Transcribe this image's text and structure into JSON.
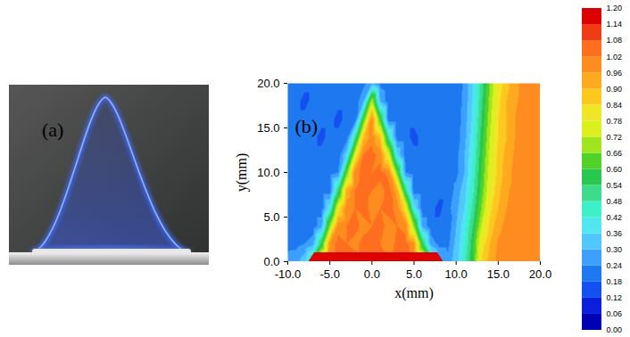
{
  "chart_data": [
    {
      "type": "image",
      "annotations": [
        "(a)"
      ]
    },
    {
      "type": "contour",
      "annotations": [
        "(b)"
      ],
      "xlabel": "x(mm)",
      "ylabel": "y(mm)",
      "xlim": [
        -10,
        20
      ],
      "ylim": [
        0,
        20
      ],
      "xticks": [
        {
          "value": -10,
          "label": "-10.0"
        },
        {
          "value": -5,
          "label": "-5.0"
        },
        {
          "value": 0,
          "label": "0.0"
        },
        {
          "value": 5,
          "label": "5.0"
        },
        {
          "value": 10,
          "label": "10.0"
        },
        {
          "value": 15,
          "label": "15.0"
        },
        {
          "value": 20,
          "label": "20.0"
        }
      ],
      "yticks": [
        {
          "value": 0,
          "label": "0.0"
        },
        {
          "value": 5,
          "label": "5.0"
        },
        {
          "value": 10,
          "label": "10.0"
        },
        {
          "value": 15,
          "label": "15.0"
        },
        {
          "value": 20,
          "label": "20.0"
        }
      ],
      "x": [
        -10,
        -9,
        -8,
        -7,
        -6,
        -5,
        -4,
        -3,
        -2,
        -1,
        0,
        1,
        2,
        3,
        4,
        5,
        6,
        7,
        8,
        9,
        10,
        11,
        12,
        13,
        14,
        15,
        16,
        17,
        18,
        19,
        20
      ],
      "y": [
        0,
        2,
        4,
        6,
        8,
        10,
        12,
        14,
        16,
        18,
        20
      ],
      "values": [
        [
          0.26,
          0.28,
          0.34,
          0.52,
          0.9,
          1.02,
          1.04,
          1.02,
          1.05,
          1.04,
          1.06,
          1.04,
          1.02,
          1.04,
          1.02,
          1.0,
          0.9,
          0.5,
          0.32,
          0.26,
          0.34,
          0.45,
          0.6,
          0.84,
          0.92,
          0.98,
          1.0,
          1.0,
          1.02,
          1.0,
          1.0
        ],
        [
          0.22,
          0.22,
          0.24,
          0.28,
          0.56,
          0.98,
          1.04,
          1.02,
          1.0,
          1.04,
          1.05,
          1.02,
          1.0,
          1.03,
          1.04,
          0.98,
          0.56,
          0.28,
          0.22,
          0.22,
          0.32,
          0.42,
          0.58,
          0.8,
          0.9,
          0.97,
          1.0,
          1.0,
          0.98,
          1.0,
          1.02
        ],
        [
          0.2,
          0.2,
          0.18,
          0.2,
          0.28,
          0.68,
          1.0,
          1.02,
          1.04,
          1.0,
          1.02,
          1.04,
          1.0,
          1.02,
          1.0,
          0.68,
          0.28,
          0.2,
          0.2,
          0.2,
          0.3,
          0.4,
          0.54,
          0.72,
          0.86,
          0.94,
          0.98,
          1.0,
          1.0,
          0.98,
          1.0
        ],
        [
          0.2,
          0.18,
          0.2,
          0.2,
          0.2,
          0.4,
          0.8,
          1.0,
          1.02,
          1.04,
          1.0,
          1.02,
          1.04,
          1.0,
          0.8,
          0.4,
          0.2,
          0.2,
          0.16,
          0.22,
          0.28,
          0.36,
          0.5,
          0.66,
          0.82,
          0.9,
          0.96,
          1.0,
          1.0,
          1.0,
          0.98
        ],
        [
          0.2,
          0.2,
          0.18,
          0.2,
          0.2,
          0.2,
          0.52,
          0.92,
          1.02,
          1.04,
          1.02,
          1.0,
          1.04,
          0.92,
          0.52,
          0.2,
          0.2,
          0.2,
          0.2,
          0.2,
          0.26,
          0.34,
          0.46,
          0.62,
          0.78,
          0.88,
          0.95,
          0.98,
          1.0,
          1.0,
          1.0
        ],
        [
          0.2,
          0.2,
          0.2,
          0.2,
          0.2,
          0.2,
          0.24,
          0.64,
          1.0,
          1.04,
          1.02,
          1.04,
          1.0,
          0.64,
          0.24,
          0.2,
          0.2,
          0.2,
          0.2,
          0.2,
          0.22,
          0.3,
          0.44,
          0.6,
          0.76,
          0.86,
          0.93,
          0.98,
          1.0,
          0.98,
          1.0
        ],
        [
          0.2,
          0.2,
          0.2,
          0.2,
          0.2,
          0.2,
          0.2,
          0.36,
          0.76,
          1.02,
          1.04,
          1.0,
          0.76,
          0.36,
          0.2,
          0.2,
          0.2,
          0.2,
          0.2,
          0.2,
          0.22,
          0.3,
          0.42,
          0.58,
          0.74,
          0.86,
          0.92,
          0.97,
          1.0,
          1.0,
          0.98
        ],
        [
          0.2,
          0.2,
          0.2,
          0.2,
          0.16,
          0.2,
          0.2,
          0.2,
          0.48,
          0.88,
          1.0,
          0.88,
          0.48,
          0.2,
          0.2,
          0.16,
          0.2,
          0.2,
          0.2,
          0.2,
          0.2,
          0.28,
          0.4,
          0.56,
          0.72,
          0.84,
          0.9,
          0.96,
          0.98,
          1.0,
          1.0
        ],
        [
          0.2,
          0.2,
          0.2,
          0.2,
          0.2,
          0.2,
          0.16,
          0.2,
          0.2,
          0.6,
          1.0,
          0.6,
          0.2,
          0.2,
          0.2,
          0.2,
          0.2,
          0.2,
          0.2,
          0.2,
          0.2,
          0.27,
          0.38,
          0.54,
          0.7,
          0.84,
          0.9,
          0.96,
          1.0,
          0.98,
          1.0
        ],
        [
          0.2,
          0.2,
          0.16,
          0.2,
          0.2,
          0.2,
          0.2,
          0.2,
          0.2,
          0.3,
          0.72,
          0.3,
          0.2,
          0.2,
          0.2,
          0.2,
          0.2,
          0.2,
          0.2,
          0.2,
          0.2,
          0.26,
          0.37,
          0.52,
          0.68,
          0.82,
          0.9,
          0.95,
          0.98,
          1.0,
          1.0
        ],
        [
          0.2,
          0.2,
          0.2,
          0.2,
          0.2,
          0.2,
          0.2,
          0.2,
          0.2,
          0.22,
          0.3,
          0.22,
          0.2,
          0.2,
          0.2,
          0.2,
          0.2,
          0.2,
          0.2,
          0.2,
          0.2,
          0.25,
          0.36,
          0.5,
          0.66,
          0.8,
          0.88,
          0.94,
          0.98,
          1.0,
          1.02
        ]
      ],
      "burner": {
        "x": [
          -7.5,
          -6.8,
          7.8,
          8.5
        ],
        "y": [
          0,
          1,
          1,
          0
        ],
        "color": "#dc0000"
      },
      "colorbar": {
        "range": [
          0,
          1.2
        ],
        "ticks": [
          {
            "value": 0,
            "label": "0.00"
          },
          {
            "value": 0.06,
            "label": "0.06"
          },
          {
            "value": 0.12,
            "label": "0.12"
          },
          {
            "value": 0.18,
            "label": "0.18"
          },
          {
            "value": 0.24,
            "label": "0.24"
          },
          {
            "value": 0.3,
            "label": "0.30"
          },
          {
            "value": 0.36,
            "label": "0.36"
          },
          {
            "value": 0.42,
            "label": "0.42"
          },
          {
            "value": 0.48,
            "label": "0.48"
          },
          {
            "value": 0.54,
            "label": "0.54"
          },
          {
            "value": 0.6,
            "label": "0.60"
          },
          {
            "value": 0.66,
            "label": "0.66"
          },
          {
            "value": 0.72,
            "label": "0.72"
          },
          {
            "value": 0.78,
            "label": "0.78"
          },
          {
            "value": 0.84,
            "label": "0.84"
          },
          {
            "value": 0.9,
            "label": "0.90"
          },
          {
            "value": 0.96,
            "label": "0.96"
          },
          {
            "value": 1.02,
            "label": "1.02"
          },
          {
            "value": 1.08,
            "label": "1.08"
          },
          {
            "value": 1.14,
            "label": "1.14"
          },
          {
            "value": 1.2,
            "label": "1.20"
          }
        ],
        "colors": [
          "#0000b4",
          "#0a1edc",
          "#1450f0",
          "#1e78f0",
          "#3ca0ff",
          "#50c8ff",
          "#50e6f0",
          "#3cf0c8",
          "#3cdc8c",
          "#28c850",
          "#50d228",
          "#a0e61e",
          "#dcf01e",
          "#f0e628",
          "#ffc81e",
          "#ffaa1e",
          "#ff8c1e",
          "#ff6e1e",
          "#f03c14",
          "#dc0000"
        ]
      }
    }
  ]
}
